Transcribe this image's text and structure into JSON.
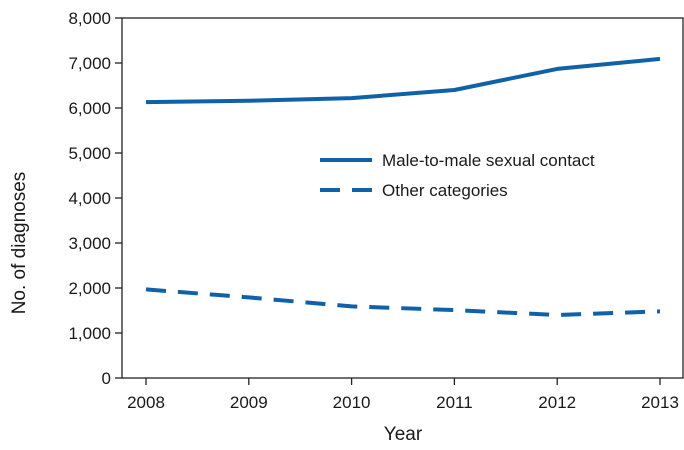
{
  "chart_data": {
    "type": "line",
    "xlabel": "Year",
    "ylabel": "No. of diagnoses",
    "x": [
      2008,
      2009,
      2010,
      2011,
      2012,
      2013
    ],
    "xlim": [
      2008,
      2013
    ],
    "ylim": [
      0,
      8000
    ],
    "x_tick_labels": [
      "2008",
      "2009",
      "2010",
      "2011",
      "2012",
      "2013"
    ],
    "y_tick_values": [
      0,
      1000,
      2000,
      3000,
      4000,
      5000,
      6000,
      7000,
      8000
    ],
    "y_tick_labels": [
      "0",
      "1,000",
      "2,000",
      "3,000",
      "4,000",
      "5,000",
      "6,000",
      "7,000",
      "8,000"
    ],
    "grid": false,
    "legend_position": "center-right",
    "series": [
      {
        "name": "Male-to-male sexual contact",
        "values": [
          6130,
          6160,
          6220,
          6400,
          6870,
          7090
        ],
        "color": "#1061a8",
        "line_style": "solid"
      },
      {
        "name": "Other categories",
        "values": [
          1970,
          1790,
          1590,
          1510,
          1400,
          1480
        ],
        "color": "#1061a8",
        "line_style": "dashed"
      }
    ]
  }
}
